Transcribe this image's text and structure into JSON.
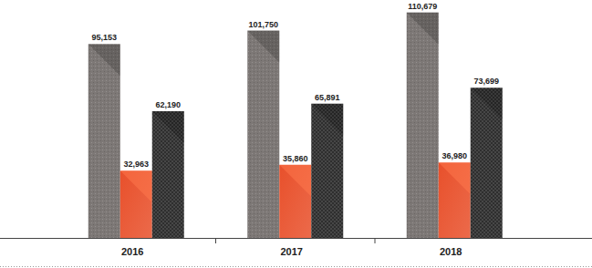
{
  "chart_data": {
    "type": "bar",
    "categories": [
      "2016",
      "2017",
      "2018"
    ],
    "series": [
      {
        "color": "#7d7876",
        "values": [
          95153,
          101750,
          110679
        ],
        "value_labels": [
          "95,153",
          "101,750",
          "110,679"
        ]
      },
      {
        "color": "#e8502b",
        "values": [
          32963,
          35860,
          36980
        ],
        "value_labels": [
          "32,963",
          "35,860",
          "36,980"
        ]
      },
      {
        "color": "#2e2e2e",
        "values": [
          62190,
          65891,
          73699
        ],
        "value_labels": [
          "62,190",
          "65,891",
          "73,699"
        ]
      }
    ],
    "ylim": [
      0,
      115000
    ],
    "data_labels": true,
    "tick_labels": "x",
    "grid": false
  }
}
